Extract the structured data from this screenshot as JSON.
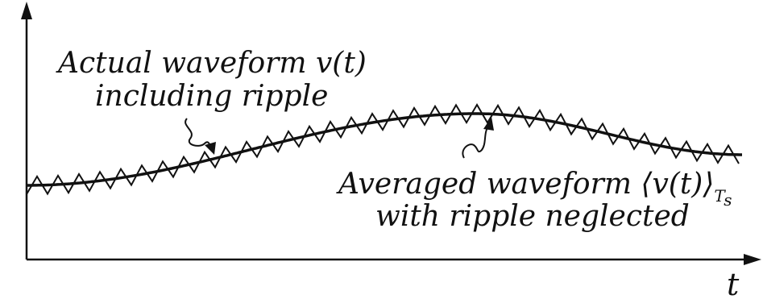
{
  "labels": {
    "actual_line1": "Actual waveform v(t)",
    "actual_line2": "including ripple",
    "avg_line1_main": "Averaged waveform ⟨v(t)⟩",
    "avg_line1_sub": "T",
    "avg_line1_subsub": "s",
    "avg_line2": "with ripple neglected",
    "x_axis": "t"
  },
  "colors": {
    "ink": "#111111",
    "background": "#ffffff"
  }
}
